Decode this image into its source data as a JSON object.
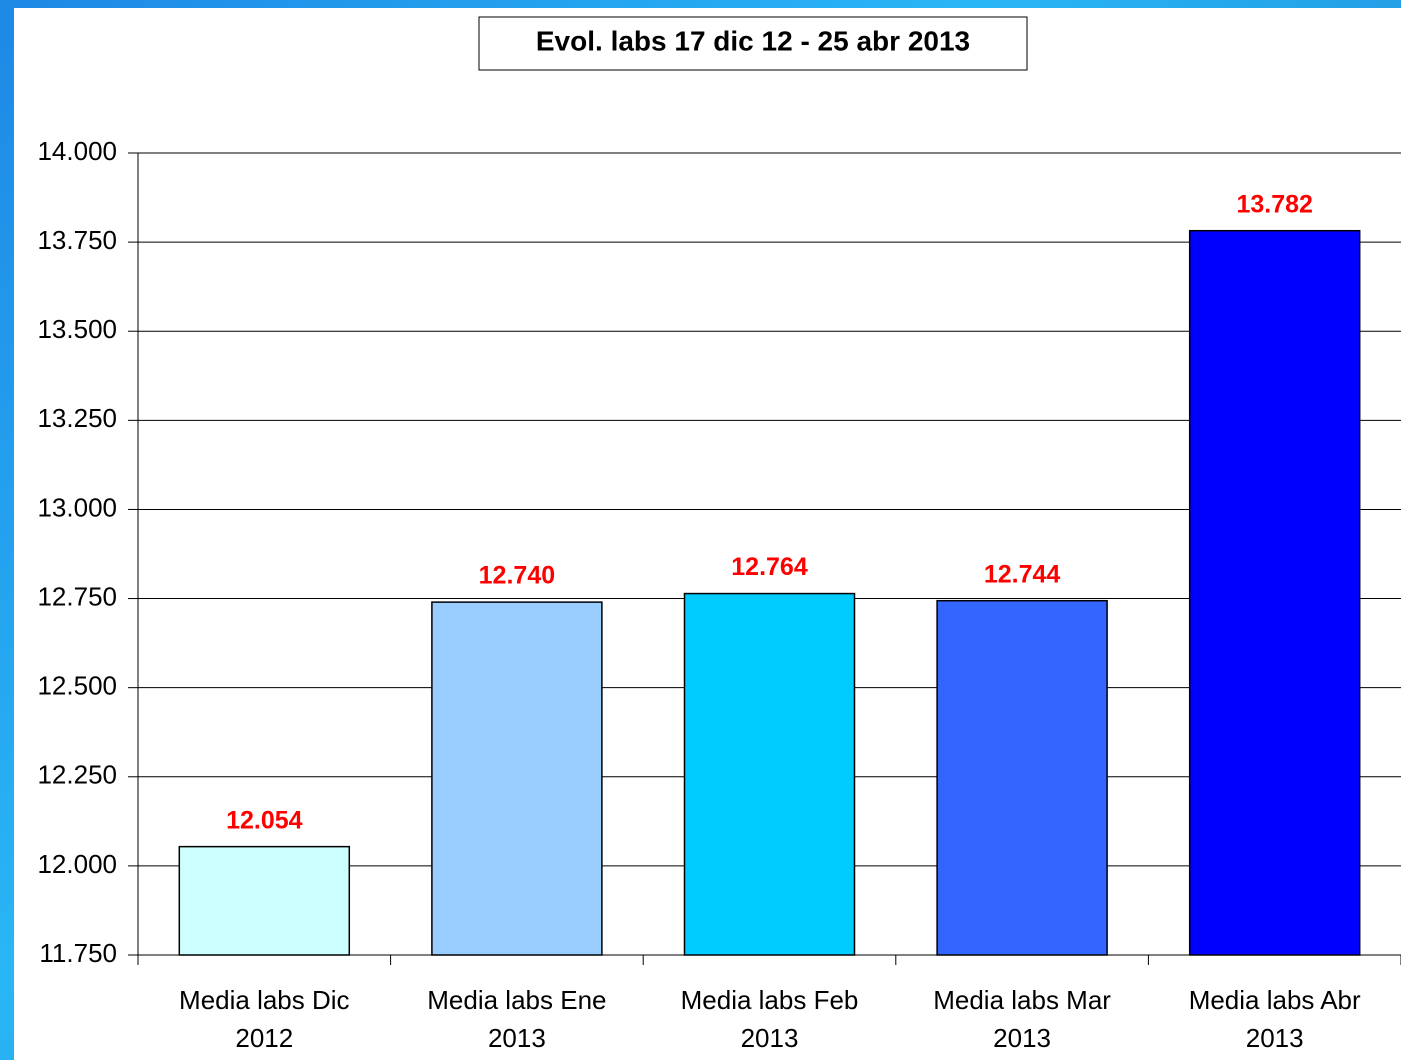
{
  "chart_data": {
    "type": "bar",
    "title": "Evol. labs 17 dic 12 - 25 abr 2013",
    "categories": [
      "Media labs Dic 2012",
      "Media labs Ene 2013",
      "Media labs Feb 2013",
      "Media labs Mar 2013",
      "Media labs Abr 2013"
    ],
    "values": [
      12054,
      12740,
      12764,
      12744,
      13782
    ],
    "value_labels": [
      "12.054",
      "12.740",
      "12.764",
      "12.744",
      "13.782"
    ],
    "colors": [
      "#ccffff",
      "#99ccff",
      "#00ccff",
      "#3366ff",
      "#0000ff"
    ],
    "ylim": [
      11750,
      14000
    ],
    "yticks": [
      {
        "value": 11750,
        "label": "11.750"
      },
      {
        "value": 12000,
        "label": "12.000"
      },
      {
        "value": 12250,
        "label": "12.250"
      },
      {
        "value": 12500,
        "label": "12.500"
      },
      {
        "value": 12750,
        "label": "12.750"
      },
      {
        "value": 13000,
        "label": "13.000"
      },
      {
        "value": 13250,
        "label": "13.250"
      },
      {
        "value": 13500,
        "label": "13.500"
      },
      {
        "value": 13750,
        "label": "13.750"
      },
      {
        "value": 14000,
        "label": "14.000"
      }
    ],
    "grid": true
  }
}
